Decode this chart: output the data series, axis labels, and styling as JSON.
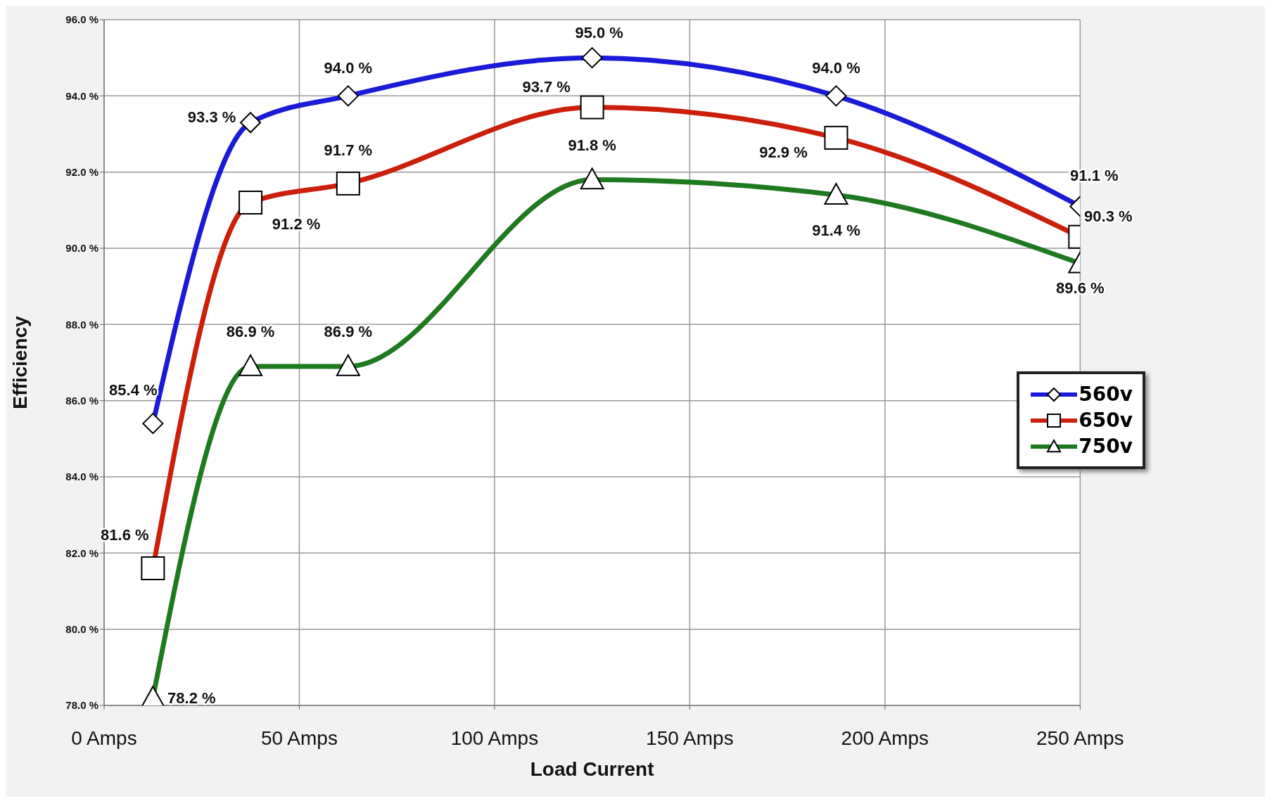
{
  "chart_data": {
    "type": "line",
    "xlabel": "Load Current",
    "ylabel": "Efficiency",
    "x": [
      12.5,
      37.5,
      62.5,
      125,
      187.5,
      250
    ],
    "xlim": [
      0,
      250
    ],
    "xticks": [
      {
        "value": 0,
        "label": "0 Amps"
      },
      {
        "value": 50,
        "label": "50 Amps"
      },
      {
        "value": 100,
        "label": "100 Amps"
      },
      {
        "value": 150,
        "label": "150 Amps"
      },
      {
        "value": 200,
        "label": "200 Amps"
      },
      {
        "value": 250,
        "label": "250 Amps"
      }
    ],
    "ylim": [
      78,
      96
    ],
    "yticks": [
      {
        "value": 78,
        "label": "78.0 %"
      },
      {
        "value": 80,
        "label": "80.0 %"
      },
      {
        "value": 82,
        "label": "82.0 %"
      },
      {
        "value": 84,
        "label": "84.0 %"
      },
      {
        "value": 86,
        "label": "86.0 %"
      },
      {
        "value": 88,
        "label": "88.0 %"
      },
      {
        "value": 90,
        "label": "90.0 %"
      },
      {
        "value": 92,
        "label": "92.0 %"
      },
      {
        "value": 94,
        "label": "94.0 %"
      },
      {
        "value": 96,
        "label": "96.0 %"
      }
    ],
    "grid": true,
    "legend": "right",
    "line_style": "solid",
    "series": [
      {
        "name": "560v",
        "color": "#1a1ad8",
        "marker": "diamond",
        "values": [
          85.4,
          93.3,
          94.0,
          95.0,
          94.0,
          91.1
        ],
        "value_labels": [
          "85.4 %",
          "93.3 %",
          "94.0 %",
          "95.0 %",
          "94.0 %",
          "91.1 %"
        ]
      },
      {
        "name": "650v",
        "color": "#cc1f0a",
        "marker": "square",
        "values": [
          81.6,
          91.2,
          91.7,
          93.7,
          92.9,
          90.3
        ],
        "value_labels": [
          "81.6 %",
          "91.2 %",
          "91.7 %",
          "93.7 %",
          "92.9 %",
          "90.3 %"
        ]
      },
      {
        "name": "750v",
        "color": "#1f7a1f",
        "marker": "triangle",
        "values": [
          78.2,
          86.9,
          86.9,
          91.8,
          91.4,
          89.6
        ],
        "value_labels": [
          "78.2 %",
          "86.9 %",
          "86.9 %",
          "91.8 %",
          "91.4 %",
          "89.6 %"
        ]
      }
    ]
  }
}
